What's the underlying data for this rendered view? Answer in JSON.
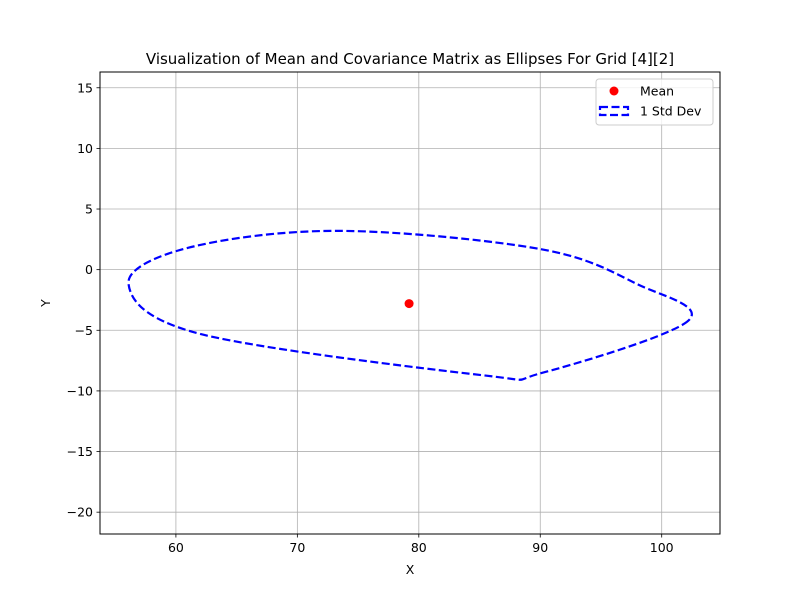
{
  "chart_data": {
    "type": "scatter",
    "title": "Visualization of Mean and Covariance Matrix as Ellipses For Grid [4][2]",
    "xlabel": "X",
    "ylabel": "Y",
    "xlim": [
      53.75,
      104.8
    ],
    "ylim": [
      -21.8,
      16.3
    ],
    "xticks": [
      60,
      70,
      80,
      90,
      100
    ],
    "yticks": [
      -20,
      -15,
      -10,
      -5,
      0,
      5,
      10,
      15
    ],
    "grid": true,
    "legend_position": "top-right",
    "series": [
      {
        "name": "Mean",
        "kind": "point",
        "color": "#ff0000",
        "x": 79.2,
        "y": -2.8
      },
      {
        "name": "1 Std Dev",
        "kind": "ellipse",
        "color": "#0000ff",
        "line_style": "dashed",
        "center": [
          79.2,
          -2.8
        ],
        "points": [
          [
            102.2,
            -4.2
          ],
          [
            90.2,
            -8.5
          ],
          [
            85.2,
            -8.7
          ],
          [
            62.0,
            -5.3
          ],
          [
            56.1,
            -1.2
          ],
          [
            61.0,
            1.8
          ],
          [
            73.4,
            3.2
          ],
          [
            90.0,
            1.7
          ],
          [
            98.0,
            -1.2
          ]
        ]
      }
    ]
  }
}
